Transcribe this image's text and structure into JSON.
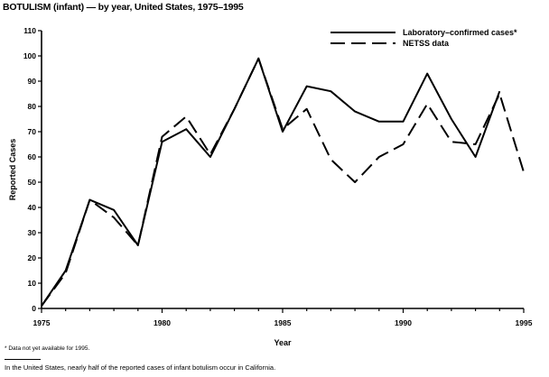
{
  "chart_data": {
    "type": "line",
    "title": "BOTULISM (infant) — by year, United States, 1975–1995",
    "xlabel": "Year",
    "ylabel": "Reported Cases",
    "xlim": [
      1975,
      1995
    ],
    "ylim": [
      0,
      110
    ],
    "x_ticks": [
      1975,
      1980,
      1985,
      1990,
      1995
    ],
    "y_ticks": [
      0,
      10,
      20,
      30,
      40,
      50,
      60,
      70,
      80,
      90,
      100,
      110
    ],
    "grid": false,
    "legend_position": "top-right",
    "series": [
      {
        "name": "Laboratory–confirmed cases*",
        "style": "solid",
        "x": [
          1975,
          1976,
          1977,
          1978,
          1979,
          1980,
          1981,
          1982,
          1983,
          1984,
          1985,
          1986,
          1987,
          1988,
          1989,
          1990,
          1991,
          1992,
          1993,
          1994
        ],
        "values": [
          1,
          15,
          43,
          39,
          25,
          66,
          71,
          60,
          79,
          99,
          70,
          88,
          86,
          78,
          74,
          74,
          93,
          75,
          60,
          86
        ]
      },
      {
        "name": "NETSS data",
        "style": "dashed",
        "x": [
          1975,
          1976,
          1977,
          1978,
          1979,
          1980,
          1981,
          1982,
          1983,
          1984,
          1985,
          1986,
          1987,
          1988,
          1989,
          1990,
          1991,
          1992,
          1993,
          1994,
          1995
        ],
        "values": [
          1,
          14,
          43,
          36,
          25,
          68,
          76,
          61,
          79,
          99,
          71,
          79,
          59,
          50,
          60,
          65,
          81,
          66,
          65,
          85,
          54
        ]
      }
    ]
  },
  "footnote": "* Data not yet available for 1995.",
  "note": "In the United States, nearly half of the reported cases of infant botulism occur in California."
}
